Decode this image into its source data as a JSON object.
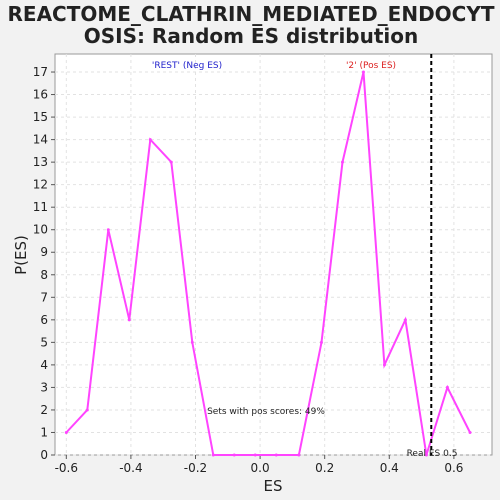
{
  "chart_data": {
    "type": "line",
    "title_line1": "REACTOME_CLATHRIN_MEDIATED_ENDOCYT",
    "title_line2": "OSIS: Random ES distribution",
    "xlabel": "ES",
    "ylabel": "P(ES)",
    "xlim": [
      -0.635,
      0.718
    ],
    "ylim": [
      0,
      17.8
    ],
    "x_ticks": [
      -0.6,
      -0.4,
      -0.2,
      0.0,
      0.2,
      0.4,
      0.6
    ],
    "x_tick_labels": [
      "-0.6",
      "-0.4",
      "-0.2",
      "0.0",
      "0.2",
      "0.4",
      "0.6"
    ],
    "y_ticks": [
      0,
      1,
      2,
      3,
      4,
      5,
      6,
      7,
      8,
      9,
      10,
      11,
      12,
      13,
      14,
      15,
      16,
      17
    ],
    "grid": true,
    "series": [
      {
        "color": "#ff44ff",
        "x": [
          -0.6,
          -0.535,
          -0.47,
          -0.405,
          -0.34,
          -0.275,
          -0.21,
          -0.145,
          -0.08,
          -0.015,
          0.05,
          0.12,
          0.19,
          0.255,
          0.32,
          0.385,
          0.45,
          0.515,
          0.58,
          0.65
        ],
        "y": [
          1,
          2,
          10,
          6,
          14,
          13,
          5,
          0,
          0,
          0,
          0,
          0,
          5,
          13,
          17,
          4,
          6,
          0,
          3,
          1
        ]
      }
    ],
    "real_es": 0.53,
    "real_es_label": "Real ES 0.5",
    "neg_label": "'REST' (Neg ES)",
    "pos_label": "'2' (Pos ES)",
    "neg_label_color": "#2222cc",
    "pos_label_color": "#dd2222",
    "line_color": "#ff44ff",
    "sets_text": "Sets with pos scores: 49%"
  }
}
